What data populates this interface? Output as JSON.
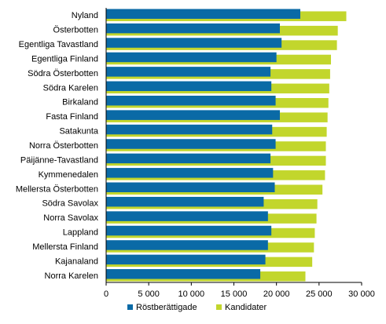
{
  "chart_data": {
    "type": "bar",
    "orientation": "horizontal",
    "title": "",
    "xlabel": "",
    "ylabel": "",
    "xlim": [
      0,
      30000
    ],
    "x_ticks": [
      0,
      5000,
      10000,
      15000,
      20000,
      25000,
      30000
    ],
    "x_tick_labels": [
      "0",
      "5 000",
      "10 000",
      "15 000",
      "20 000",
      "25 000",
      "30 000"
    ],
    "grid": false,
    "legend_position": "bottom",
    "categories": [
      "Nyland",
      "Österbotten",
      "Egentliga Tavastland",
      "Egentliga Finland",
      "Södra Österbotten",
      "Södra Karelen",
      "Birkaland",
      "Fasta Finland",
      "Satakunta",
      "Norra Österbotten",
      "Päijänne-Tavastland",
      "Kymmenedalen",
      "Mellersta Österbotten",
      "Södra Savolax",
      "Norra Savolax",
      "Lappland",
      "Mellersta Finland",
      "Kajanaland",
      "Norra Karelen"
    ],
    "series": [
      {
        "name": "Röstberättigade",
        "color": "#0a6aa6",
        "values": [
          22800,
          20400,
          20600,
          20000,
          19300,
          19400,
          19900,
          20400,
          19500,
          19900,
          19300,
          19600,
          19800,
          18500,
          19000,
          19400,
          19000,
          18700,
          18100
        ]
      },
      {
        "name": "Kandidater",
        "color": "#c2d62c",
        "values": [
          28200,
          27200,
          27100,
          26400,
          26300,
          26200,
          26100,
          26000,
          25900,
          25800,
          25800,
          25700,
          25400,
          24800,
          24700,
          24500,
          24400,
          24200,
          23400
        ]
      }
    ]
  }
}
